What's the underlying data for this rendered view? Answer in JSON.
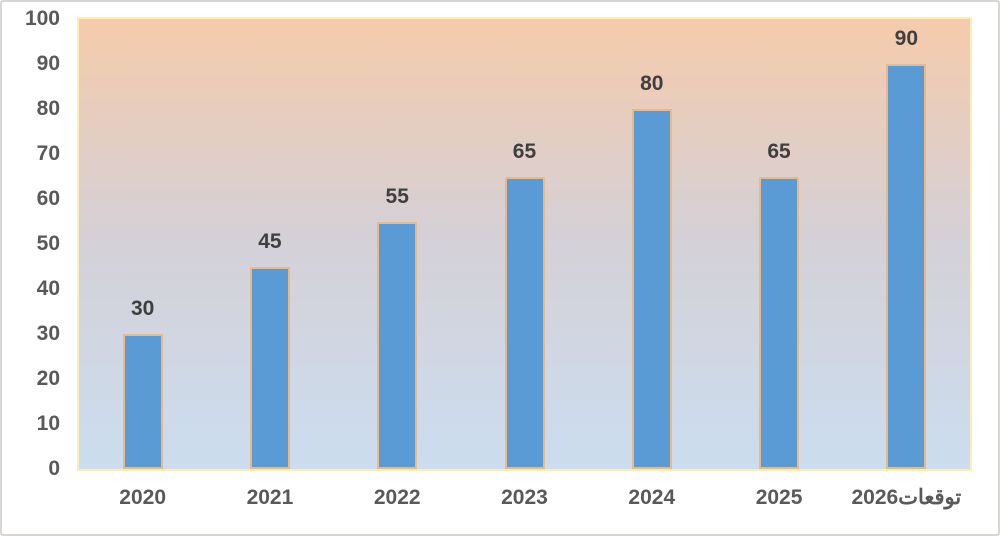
{
  "chart_data": {
    "type": "bar",
    "categories": [
      "2020",
      "2021",
      "2022",
      "2023",
      "2024",
      "2025",
      "توقعات2026"
    ],
    "values": [
      30,
      45,
      55,
      65,
      80,
      65,
      90
    ],
    "title": "",
    "xlabel": "",
    "ylabel": "",
    "ylim": [
      0,
      100
    ],
    "yticks": [
      0,
      10,
      20,
      30,
      40,
      50,
      60,
      70,
      80,
      90,
      100
    ],
    "grid": false,
    "legend": "none",
    "colors": {
      "bar_fill": "#5B9BD5",
      "bar_border": "#EDB883",
      "plot_border": "#FAF0B5",
      "plot_bg_gradient_top": "#F6CBAB",
      "plot_bg_gradient_mid": "#D5D0D6",
      "plot_bg_gradient_bottom": "#CBDDEF",
      "value_label": "#3F3F3F",
      "axis_label": "#595959",
      "outer_border": "#D8D5D5"
    }
  }
}
